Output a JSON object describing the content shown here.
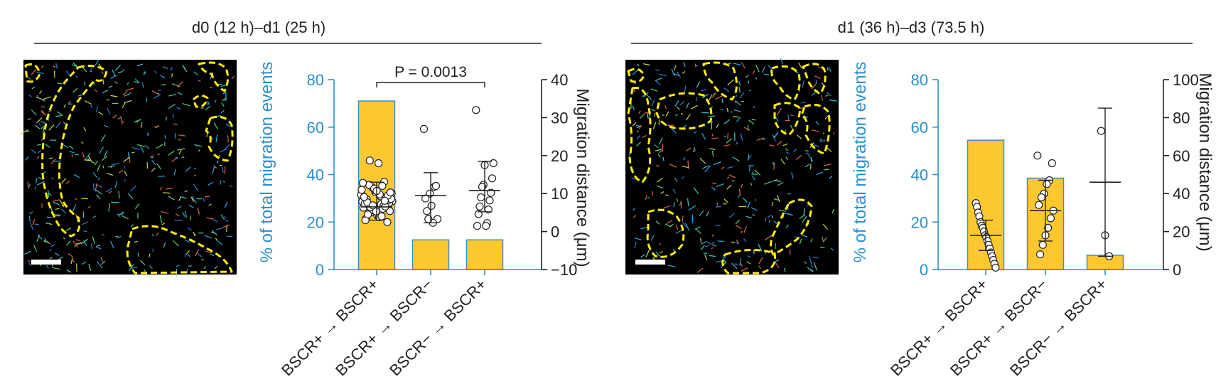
{
  "colors": {
    "bar_fill": "#FDC82F",
    "bar_stroke": "#3A8FC7",
    "left_axis": "#2A8FD0",
    "right_axis": "#222222",
    "outline": "#FFF200",
    "image_bg": "#000000"
  },
  "panels": [
    {
      "header": "d0 (12 h)–d1 (25 h)",
      "microscopy_icon": "microscopy-image-with-dashed-outlines",
      "scale_bar": true
    },
    {
      "header": "d1 (36 h)–d3 (73.5 h)",
      "microscopy_icon": "microscopy-image-with-dashed-outlines",
      "scale_bar": true
    }
  ],
  "chart_data": [
    {
      "type": "bar",
      "categories": [
        "BSCR+ → BSCR+",
        "BSCR+ → BSCR−",
        "BSCR− → BSCR+"
      ],
      "ylabel": "% of total migration events",
      "y2label": "Migration distance (μm)",
      "ylim": [
        0,
        80
      ],
      "yticks": [
        0,
        20,
        40,
        60,
        80
      ],
      "y2lim": [
        -10,
        40
      ],
      "y2ticks": [
        -10,
        0,
        10,
        20,
        30,
        40
      ],
      "bars": [
        71,
        12.5,
        12.5
      ],
      "points": [
        [
          9.7,
          13.1,
          10.4,
          8.5,
          5.4,
          7.2,
          11.6,
          6.3,
          9.0,
          4.8,
          12.3,
          8.0,
          6.8,
          10.9,
          3.4,
          7.6,
          9.3,
          5.9,
          12.8,
          8.8,
          4.2,
          7.0,
          10.1,
          6.0,
          11.3,
          3.0,
          8.3,
          9.8,
          5.1,
          7.9,
          6.6,
          10.7,
          4.5,
          8.6,
          12.0,
          5.6,
          7.4,
          9.5,
          3.8,
          6.4,
          11.0,
          8.1,
          5.3,
          7.7,
          10.3,
          4.0,
          6.9,
          9.1,
          2.5,
          18.0,
          18.7
        ],
        [
          27.0,
          11.8,
          10.0,
          8.7,
          12.0,
          6.8,
          5.4,
          3.3,
          2.3,
          3.3
        ],
        [
          32.0,
          17.5,
          18.0,
          12.3,
          14.0,
          11.8,
          10.2,
          9.0,
          8.2,
          6.6,
          5.8,
          4.6,
          2.2,
          1.5,
          1.5
        ]
      ],
      "means": [
        6.5,
        9.5,
        10.8
      ],
      "sd": [
        [
          3.0,
          13.0
        ],
        [
          2.3,
          15.5
        ],
        [
          5.2,
          18.5
        ]
      ],
      "annotation": {
        "text": "P = 0.0013",
        "from": 0,
        "to": 2
      }
    },
    {
      "type": "bar",
      "categories": [
        "BSCR+ → BSCR+",
        "BSCR+ → BSCR−",
        "BSCR− → BSCR+"
      ],
      "ylabel": "% of total migration events",
      "y2label": "Migration distance (μm)",
      "ylim": [
        0,
        80
      ],
      "yticks": [
        0,
        20,
        40,
        60,
        80
      ],
      "y2lim": [
        0,
        100
      ],
      "y2ticks": [
        0,
        20,
        40,
        60,
        80,
        100
      ],
      "bars": [
        54.5,
        38.5,
        6.0
      ],
      "points": [
        [
          35.0,
          33.0,
          30.0,
          28.0,
          25.0,
          23.0,
          22.0,
          20.0,
          18.0,
          17.0,
          15.0,
          13.0,
          11.0,
          9.0,
          7.0,
          5.0,
          3.0,
          1.0
        ],
        [
          60.0,
          56.0,
          47.0,
          45.0,
          40.0,
          38.0,
          34.0,
          31.0,
          27.0,
          22.0,
          18.0,
          13.0,
          8.0
        ],
        [
          73.0,
          18.0,
          7.0
        ]
      ],
      "means": [
        18.0,
        31.0,
        46.0
      ],
      "sd": [
        [
          10.0,
          26.0
        ],
        [
          15.0,
          47.0
        ],
        [
          7.0,
          85.0
        ]
      ]
    }
  ]
}
